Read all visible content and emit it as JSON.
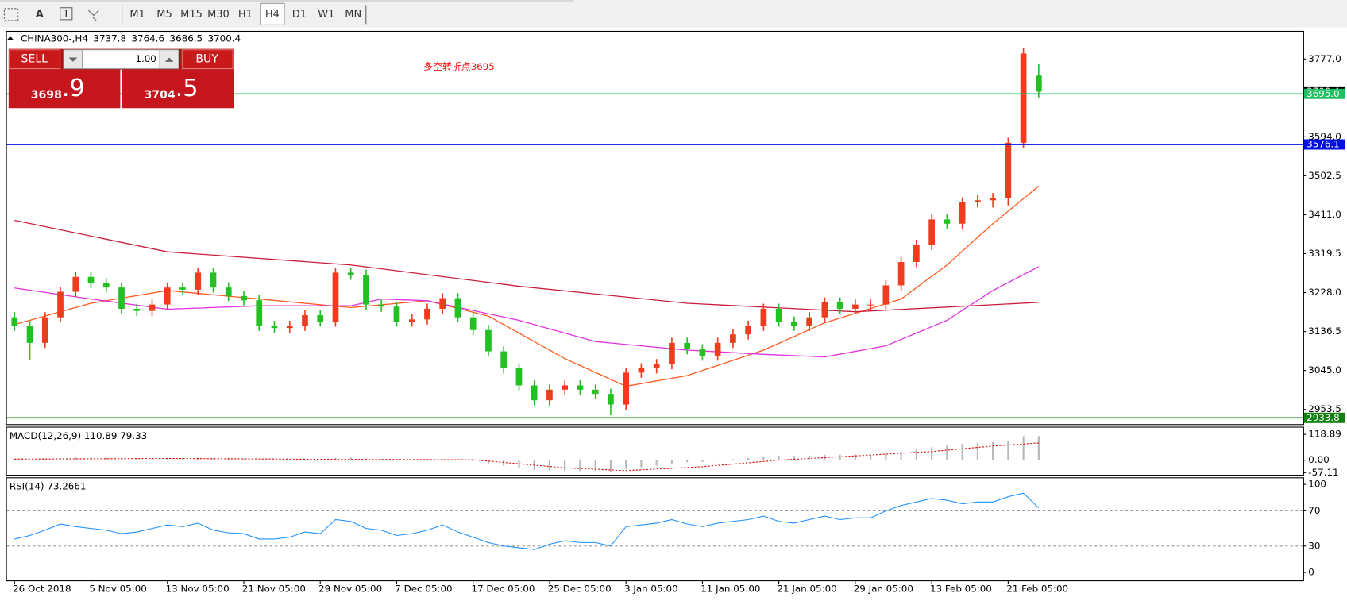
{
  "toolbar": {
    "text_tool": "A",
    "timeframes": [
      "M1",
      "M5",
      "M15",
      "M30",
      "H1",
      "H4",
      "D1",
      "W1",
      "MN"
    ],
    "active": "H4"
  },
  "trade_panel": {
    "sell_label": "SELL",
    "volume": "1.00",
    "buy_label": "BUY",
    "sell_price_main": "3698",
    "sell_price_frac": ".9",
    "buy_price_main": "3704",
    "buy_price_frac": ".5"
  },
  "annotation": "多空转折点3695",
  "chart_data": [
    {
      "type": "candlestick",
      "symbol": "CHINA300-,H4",
      "up_color": "#f03c1e",
      "down_color": "#22c022",
      "xlim": [
        -0.5,
        84.3
      ],
      "ylim": [
        2919,
        3841
      ],
      "xticks": [
        {
          "value": 0,
          "label": "26 Oct 2018"
        },
        {
          "value": 5,
          "label": "5 Nov 05:00"
        },
        {
          "value": 10,
          "label": "13 Nov 05:00"
        },
        {
          "value": 15,
          "label": "21 Nov 05:00"
        },
        {
          "value": 20,
          "label": "29 Nov 05:00"
        },
        {
          "value": 25,
          "label": "7 Dec 05:00"
        },
        {
          "value": 30,
          "label": "17 Dec 05:00"
        },
        {
          "value": 35,
          "label": "25 Dec 05:00"
        },
        {
          "value": 40,
          "label": "3 Jan 05:00"
        },
        {
          "value": 45,
          "label": "11 Jan 05:00"
        },
        {
          "value": 50,
          "label": "21 Jan 05:00"
        },
        {
          "value": 55,
          "label": "29 Jan 05:00"
        },
        {
          "value": 60,
          "label": "13 Feb 05:00"
        },
        {
          "value": 65,
          "label": "21 Feb 05:00"
        }
      ],
      "yticks": [
        {
          "value": 3777,
          "label": "3777.0"
        },
        {
          "value": 3594,
          "label": "3594.0"
        },
        3502.5,
        {
          "value": 3411,
          "label": "3411.0"
        },
        3319.5,
        {
          "value": 3228,
          "label": "3228.0"
        },
        3136.5,
        {
          "value": 3045,
          "label": "3045.0"
        },
        2953.5
      ],
      "open": [
        3170,
        3150,
        3110,
        3170,
        3230,
        3265,
        3250,
        3240,
        3190,
        3185,
        3200,
        3240,
        3235,
        3275,
        3240,
        3220,
        3210,
        3150,
        3145,
        3150,
        3175,
        3160,
        3275,
        3270,
        3200,
        3195,
        3160,
        3165,
        3190,
        3215,
        3170,
        3140,
        3090,
        3050,
        3010,
        2975,
        3000,
        3010,
        3000,
        2990,
        2965,
        3040,
        3050,
        3060,
        3110,
        3095,
        3080,
        3110,
        3130,
        3150,
        3190,
        3160,
        3150,
        3170,
        3205,
        3190,
        3200,
        3200,
        3245,
        3300,
        3340,
        3400,
        3390,
        3440,
        3445,
        3450,
        3580,
        3737.8
      ],
      "high": [
        3182,
        3162,
        3182,
        3242,
        3277,
        3277,
        3262,
        3252,
        3202,
        3212,
        3252,
        3252,
        3287,
        3287,
        3252,
        3232,
        3222,
        3162,
        3162,
        3187,
        3187,
        3287,
        3287,
        3282,
        3212,
        3207,
        3177,
        3202,
        3227,
        3227,
        3182,
        3152,
        3102,
        3062,
        3022,
        3012,
        3022,
        3022,
        3012,
        3002,
        3052,
        3062,
        3072,
        3122,
        3122,
        3107,
        3122,
        3142,
        3162,
        3202,
        3202,
        3172,
        3182,
        3217,
        3217,
        3212,
        3212,
        3257,
        3312,
        3352,
        3412,
        3412,
        3452,
        3457,
        3462,
        3592,
        3802,
        3764.6
      ],
      "low": [
        3138,
        3070,
        3098,
        3158,
        3218,
        3238,
        3228,
        3178,
        3173,
        3173,
        3188,
        3223,
        3223,
        3228,
        3208,
        3198,
        3138,
        3133,
        3133,
        3138,
        3148,
        3148,
        3258,
        3188,
        3183,
        3148,
        3148,
        3153,
        3178,
        3158,
        3128,
        3078,
        3038,
        2998,
        2963,
        2963,
        2988,
        2988,
        2978,
        2940,
        2953,
        3028,
        3038,
        3048,
        3083,
        3068,
        3068,
        3098,
        3118,
        3138,
        3148,
        3138,
        3138,
        3158,
        3178,
        3178,
        3188,
        3188,
        3233,
        3288,
        3328,
        3378,
        3378,
        3428,
        3428,
        3433,
        3568,
        3686.5
      ],
      "close": [
        3150,
        3110,
        3170,
        3230,
        3265,
        3250,
        3240,
        3190,
        3185,
        3200,
        3240,
        3235,
        3275,
        3240,
        3220,
        3210,
        3150,
        3145,
        3150,
        3175,
        3160,
        3275,
        3270,
        3200,
        3195,
        3160,
        3165,
        3190,
        3215,
        3170,
        3140,
        3090,
        3050,
        3010,
        2975,
        3000,
        3010,
        3000,
        2990,
        2965,
        3040,
        3050,
        3060,
        3110,
        3095,
        3080,
        3110,
        3130,
        3150,
        3190,
        3160,
        3150,
        3170,
        3205,
        3190,
        3200,
        3200,
        3245,
        3300,
        3340,
        3400,
        3390,
        3440,
        3445,
        3450,
        3580,
        3790,
        3700.4
      ],
      "moving_averages": [
        {
          "color": "#ff5a1e",
          "x": [
            0,
            5,
            10,
            16,
            22,
            27,
            31,
            36,
            40,
            44,
            49,
            53,
            58,
            61,
            64,
            67
          ],
          "values": [
            3153,
            3203,
            3233,
            3213,
            3193,
            3209,
            3173,
            3073,
            3008,
            3033,
            3093,
            3157,
            3213,
            3293,
            3390,
            3478
          ]
        },
        {
          "color": "#e030e0",
          "x": [
            0,
            5,
            10,
            16,
            22,
            24,
            27,
            33,
            38,
            44,
            49,
            53,
            57,
            61,
            64,
            67
          ],
          "values": [
            3239,
            3213,
            3189,
            3197,
            3197,
            3213,
            3209,
            3163,
            3113,
            3093,
            3083,
            3077,
            3103,
            3163,
            3233,
            3289
          ]
        },
        {
          "color": "#c81e3c",
          "x": [
            0,
            10,
            22,
            33,
            44,
            55,
            67
          ],
          "values": [
            3398,
            3324,
            3293,
            3243,
            3203,
            3183,
            3205
          ]
        }
      ],
      "hlines": [
        {
          "value": 3695,
          "label": "3695.0",
          "color": "#20c060"
        },
        {
          "value": 3576.1,
          "color": "#0010e0"
        },
        {
          "value": 2933.8,
          "color": "#108010"
        }
      ]
    },
    {
      "type": "macd",
      "label": "MACD(12,26,9) 110.89 79.33",
      "xlim": [
        -0.5,
        84.3
      ],
      "ylim": [
        -63,
        150
      ],
      "yticks": [
        118.89,
        {
          "value": 0,
          "label": "0.00"
        },
        -57.11
      ],
      "histogram": {
        "color": "#b8b8b8",
        "values": [
          5,
          3,
          6,
          10,
          14,
          15,
          14,
          10,
          8,
          8,
          10,
          10,
          12,
          10,
          8,
          7,
          2,
          0,
          0,
          2,
          2,
          10,
          12,
          8,
          6,
          2,
          2,
          4,
          6,
          2,
          -5,
          -15,
          -25,
          -35,
          -45,
          -48,
          -50,
          -50,
          -50,
          -52,
          -40,
          -32,
          -25,
          -15,
          -10,
          -8,
          -2,
          5,
          10,
          18,
          20,
          20,
          22,
          25,
          25,
          26,
          26,
          30,
          40,
          50,
          60,
          68,
          75,
          80,
          82,
          90,
          110,
          110.89
        ]
      },
      "signal": {
        "color": "#e00000",
        "x": [
          0,
          10,
          20,
          30,
          36,
          40,
          45,
          50,
          55,
          60,
          64,
          67
        ],
        "values": [
          5,
          8,
          4,
          2,
          -35,
          -48,
          -30,
          0,
          20,
          40,
          65,
          79.33
        ]
      }
    },
    {
      "type": "line",
      "label": "RSI(14) 73.2661",
      "xlim": [
        -0.5,
        84.3
      ],
      "ylim": [
        -9,
        107
      ],
      "yticks": [
        100,
        70,
        30,
        0
      ],
      "levels": [
        70,
        30
      ],
      "color": "#1e90ff",
      "values": [
        38,
        42,
        48,
        55,
        52,
        50,
        48,
        44,
        46,
        50,
        54,
        52,
        56,
        48,
        45,
        44,
        38,
        38,
        40,
        46,
        44,
        60,
        58,
        50,
        48,
        42,
        44,
        48,
        54,
        46,
        40,
        34,
        30,
        28,
        26,
        32,
        36,
        34,
        34,
        30,
        52,
        54,
        56,
        60,
        55,
        52,
        56,
        58,
        60,
        64,
        58,
        56,
        60,
        64,
        60,
        62,
        62,
        70,
        76,
        80,
        84,
        82,
        78,
        80,
        80,
        86,
        90,
        73.2661
      ]
    }
  ]
}
